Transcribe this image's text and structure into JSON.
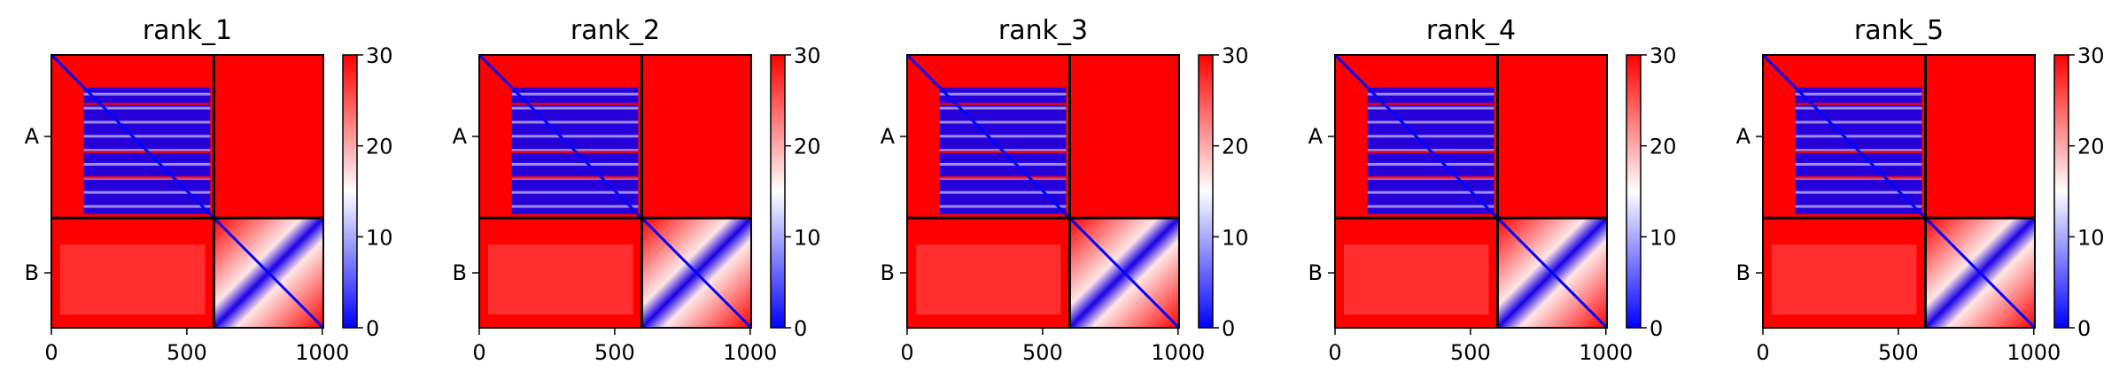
{
  "chart_data": [
    {
      "type": "heatmap",
      "title": "rank_1",
      "xlim": [
        0,
        1004
      ],
      "xticks": [
        0,
        500,
        1000
      ],
      "xtick_labels": [
        "0",
        "500",
        "1000"
      ],
      "chain_boundary": 600,
      "yticks": [
        {
          "label": "A",
          "value": 300
        },
        {
          "label": "B",
          "value": 802
        }
      ],
      "colorbar": {
        "min": 0,
        "max": 30,
        "ticks": [
          0,
          10,
          20,
          30
        ],
        "tick_labels": [
          "0",
          "10",
          "20",
          "30"
        ],
        "colors": [
          "#0000ff",
          "#ffffff",
          "#ff0000"
        ]
      },
      "colors": {
        "low": "#0000ff",
        "mid": "#ffffff",
        "high": "#ff0000"
      }
    },
    {
      "type": "heatmap",
      "title": "rank_2",
      "xlim": [
        0,
        1004
      ],
      "xticks": [
        0,
        500,
        1000
      ],
      "xtick_labels": [
        "0",
        "500",
        "1000"
      ],
      "chain_boundary": 600,
      "yticks": [
        {
          "label": "A",
          "value": 300
        },
        {
          "label": "B",
          "value": 802
        }
      ],
      "colorbar": {
        "min": 0,
        "max": 30,
        "ticks": [
          0,
          10,
          20,
          30
        ],
        "tick_labels": [
          "0",
          "10",
          "20",
          "30"
        ],
        "colors": [
          "#0000ff",
          "#ffffff",
          "#ff0000"
        ]
      },
      "colors": {
        "low": "#0000ff",
        "mid": "#ffffff",
        "high": "#ff0000"
      }
    },
    {
      "type": "heatmap",
      "title": "rank_3",
      "xlim": [
        0,
        1004
      ],
      "xticks": [
        0,
        500,
        1000
      ],
      "xtick_labels": [
        "0",
        "500",
        "1000"
      ],
      "chain_boundary": 600,
      "yticks": [
        {
          "label": "A",
          "value": 300
        },
        {
          "label": "B",
          "value": 802
        }
      ],
      "colorbar": {
        "min": 0,
        "max": 30,
        "ticks": [
          0,
          10,
          20,
          30
        ],
        "tick_labels": [
          "0",
          "10",
          "20",
          "30"
        ],
        "colors": [
          "#0000ff",
          "#ffffff",
          "#ff0000"
        ]
      },
      "colors": {
        "low": "#0000ff",
        "mid": "#ffffff",
        "high": "#ff0000"
      }
    },
    {
      "type": "heatmap",
      "title": "rank_4",
      "xlim": [
        0,
        1004
      ],
      "xticks": [
        0,
        500,
        1000
      ],
      "xtick_labels": [
        "0",
        "500",
        "1000"
      ],
      "chain_boundary": 600,
      "yticks": [
        {
          "label": "A",
          "value": 300
        },
        {
          "label": "B",
          "value": 802
        }
      ],
      "colorbar": {
        "min": 0,
        "max": 30,
        "ticks": [
          0,
          10,
          20,
          30
        ],
        "tick_labels": [
          "0",
          "10",
          "20",
          "30"
        ],
        "colors": [
          "#0000ff",
          "#ffffff",
          "#ff0000"
        ]
      },
      "colors": {
        "low": "#0000ff",
        "mid": "#ffffff",
        "high": "#ff0000"
      }
    },
    {
      "type": "heatmap",
      "title": "rank_5",
      "xlim": [
        0,
        1004
      ],
      "xticks": [
        0,
        500,
        1000
      ],
      "xtick_labels": [
        "0",
        "500",
        "1000"
      ],
      "chain_boundary": 600,
      "yticks": [
        {
          "label": "A",
          "value": 300
        },
        {
          "label": "B",
          "value": 802
        }
      ],
      "colorbar": {
        "min": 0,
        "max": 30,
        "ticks": [
          0,
          10,
          20,
          30
        ],
        "tick_labels": [
          "0",
          "10",
          "20",
          "30"
        ],
        "colors": [
          "#0000ff",
          "#ffffff",
          "#ff0000"
        ]
      },
      "colors": {
        "low": "#0000ff",
        "mid": "#ffffff",
        "high": "#ff0000"
      }
    }
  ]
}
